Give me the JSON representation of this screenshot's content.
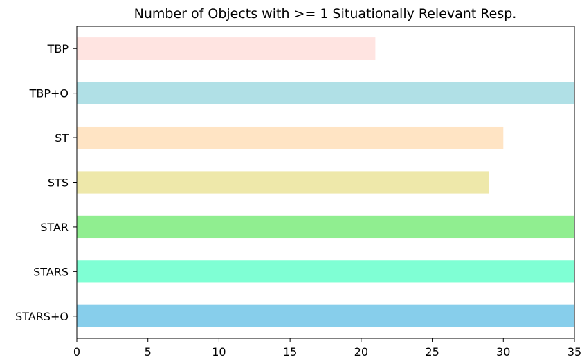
{
  "chart_data": {
    "type": "bar",
    "orientation": "horizontal",
    "title": "Number of Objects with >= 1 Situationally Relevant Resp.",
    "xlabel": "",
    "ylabel": "",
    "categories": [
      "TBP",
      "TBP+O",
      "ST",
      "STS",
      "STAR",
      "STARS",
      "STARS+O"
    ],
    "values": [
      21,
      35,
      30,
      29,
      35,
      35,
      35
    ],
    "colors": [
      "#ffe4e1",
      "#b0e0e6",
      "#ffe4c4",
      "#eee8aa",
      "#90ee90",
      "#7fffd4",
      "#87ceeb"
    ],
    "xlim": [
      0,
      35
    ],
    "xticks": [
      0,
      5,
      10,
      15,
      20,
      25,
      30,
      35
    ],
    "grid": false,
    "legend": "none"
  }
}
